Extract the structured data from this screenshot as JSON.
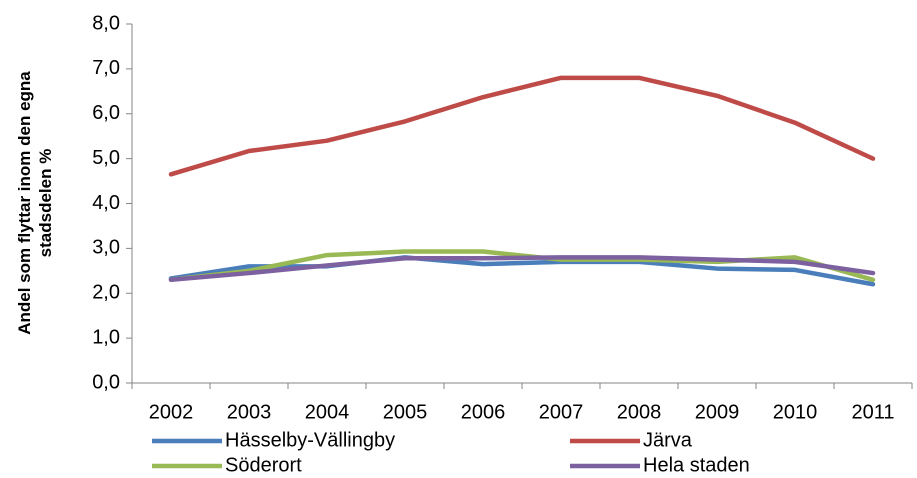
{
  "chart_data": {
    "type": "line",
    "y_label": "Andel som flyttar inom den egna stadsdelen %",
    "categories": [
      "2002",
      "2003",
      "2004",
      "2005",
      "2006",
      "2007",
      "2008",
      "2009",
      "2010",
      "2011"
    ],
    "series": [
      {
        "name": "Hässelby-Vällingby",
        "color": "#4a7ebb",
        "values": [
          2.33,
          2.6,
          2.6,
          2.8,
          2.65,
          2.7,
          2.7,
          2.55,
          2.52,
          2.2
        ]
      },
      {
        "name": "Järva",
        "color": "#be4b48",
        "values": [
          4.65,
          5.17,
          5.4,
          5.83,
          6.37,
          6.8,
          6.8,
          6.4,
          5.8,
          5.0
        ]
      },
      {
        "name": "Söderort",
        "color": "#98b954",
        "values": [
          2.3,
          2.5,
          2.85,
          2.93,
          2.93,
          2.75,
          2.75,
          2.7,
          2.8,
          2.3
        ]
      },
      {
        "name": "Hela staden",
        "color": "#7d60a0",
        "values": [
          2.3,
          2.45,
          2.62,
          2.78,
          2.78,
          2.8,
          2.8,
          2.75,
          2.7,
          2.45
        ]
      }
    ],
    "ylim": [
      0,
      8
    ],
    "yticks": [
      {
        "value": 0,
        "label": "0,0"
      },
      {
        "value": 1,
        "label": "1,0"
      },
      {
        "value": 2,
        "label": "2,0"
      },
      {
        "value": 3,
        "label": "3,0"
      },
      {
        "value": 4,
        "label": "4,0"
      },
      {
        "value": 5,
        "label": "5,0"
      },
      {
        "value": 6,
        "label": "6,0"
      },
      {
        "value": 7,
        "label": "7,0"
      },
      {
        "value": 8,
        "label": "8,0"
      }
    ],
    "grid": false,
    "legend": "bottom"
  }
}
